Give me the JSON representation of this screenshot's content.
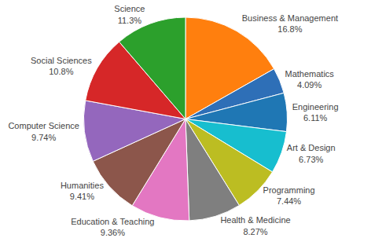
{
  "chart_data": {
    "type": "pie",
    "categories": [
      "Business & Management",
      "Mathematics",
      "Engineering",
      "Art & Design",
      "Programming",
      "Health & Medicine",
      "Education & Teaching",
      "Humanities",
      "Computer Science",
      "Social Sciences",
      "Science"
    ],
    "values": [
      16.8,
      4.09,
      6.11,
      6.73,
      7.44,
      8.27,
      9.36,
      9.41,
      9.74,
      10.8,
      11.3
    ],
    "value_labels": [
      "16.8%",
      "4.09%",
      "6.11%",
      "6.73%",
      "7.44%",
      "8.27%",
      "9.36%",
      "9.41%",
      "9.74%",
      "10.8%",
      "11.3%"
    ],
    "colors": [
      "#ff7f0e",
      "#2e6fb7",
      "#1f77b4",
      "#17becf",
      "#bcbd22",
      "#7f7f7f",
      "#e377c2",
      "#8c564b",
      "#9467bd",
      "#d62728",
      "#2ca02c"
    ],
    "data_labels": true
  }
}
